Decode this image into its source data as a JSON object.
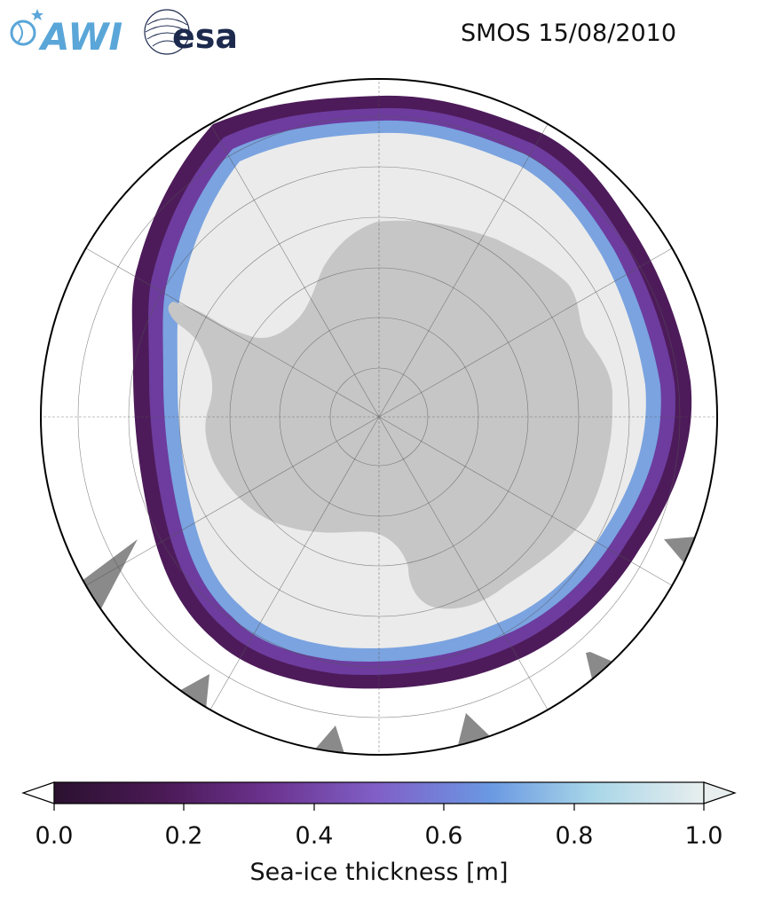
{
  "logos": {
    "awi": {
      "text": "AWI",
      "color": "#5aa6d8"
    },
    "esa": {
      "text": "esa",
      "color": "#1d2a4e"
    }
  },
  "title": "SMOS 15/08/2010",
  "map": {
    "projection": "south-polar-stereographic",
    "land_color": "#c6c6c6",
    "ice_color": "#ebebeb",
    "grid": true,
    "latitude_circles_deg": [
      -80,
      -70,
      -60,
      -50
    ],
    "meridian_spacing_deg": 30
  },
  "colorbar": {
    "label": "Sea-ice thickness [m]",
    "ticks": [
      "0.0",
      "0.2",
      "0.4",
      "0.6",
      "0.8",
      "1.0"
    ],
    "range": [
      0.0,
      1.0
    ],
    "extend": "both",
    "colors": [
      "#2b1130",
      "#4b1a56",
      "#6c338f",
      "#8060c8",
      "#6a98e2",
      "#a8d6e8",
      "#e8eeee"
    ]
  }
}
